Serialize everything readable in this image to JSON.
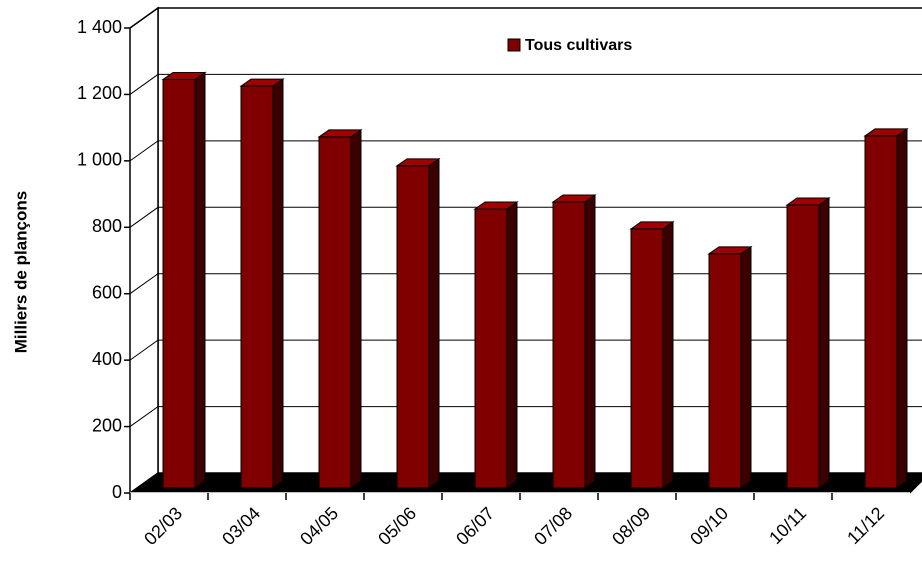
{
  "chart_data": {
    "type": "bar3d",
    "y_label": "Milliers de plançons",
    "categories": [
      "02/03",
      "03/04",
      "04/05",
      "05/06",
      "06/07",
      "07/08",
      "08/09",
      "09/10",
      "10/11",
      "11/12"
    ],
    "series": [
      {
        "name": "Tous cultivars",
        "color": "#800000",
        "values": [
          1230,
          1210,
          1057,
          970,
          840,
          861,
          780,
          705,
          852,
          1060
        ]
      }
    ],
    "ylim": [
      0,
      1400
    ],
    "yticks": [
      0,
      200,
      400,
      600,
      800,
      {
        "value": 1000,
        "label": "1 000"
      },
      {
        "value": 1200,
        "label": "1 200"
      },
      {
        "value": 1400,
        "label": "1 400"
      }
    ],
    "grid": true
  }
}
